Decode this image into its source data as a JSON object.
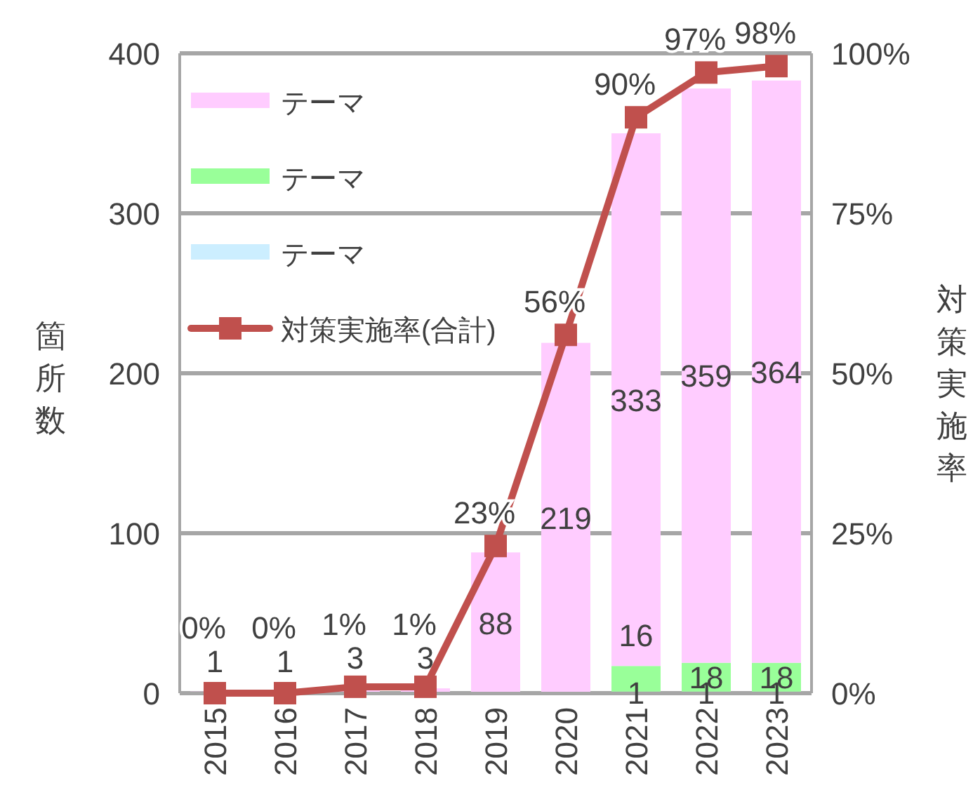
{
  "chart_data": {
    "type": "bar",
    "stacked": true,
    "ylabel": "箇所数",
    "y2label": "対策実施率",
    "categories": [
      "2015",
      "2016",
      "2017",
      "2018",
      "2019",
      "2020",
      "2021",
      "2022",
      "2023"
    ],
    "ylim": [
      0,
      400
    ],
    "yticks": [
      0,
      100,
      200,
      300,
      400
    ],
    "y2lim": [
      0,
      100
    ],
    "y2ticks": [
      {
        "value": 0,
        "label": "0%"
      },
      {
        "value": 25,
        "label": "25%"
      },
      {
        "value": 50,
        "label": "50%"
      },
      {
        "value": 75,
        "label": "75%"
      },
      {
        "value": 100,
        "label": "100%"
      }
    ],
    "grid": "y",
    "legend": "top left",
    "data_labels": true,
    "series": [
      {
        "name": "テーマ",
        "color": "#cceeff",
        "values": [
          null,
          null,
          null,
          null,
          null,
          null,
          1,
          1,
          1
        ]
      },
      {
        "name": "テーマ",
        "color": "#99ff99",
        "values": [
          null,
          null,
          null,
          null,
          null,
          null,
          16,
          18,
          18
        ]
      },
      {
        "name": "テーマ",
        "color": "#ffccff",
        "values": [
          1,
          1,
          3,
          3,
          88,
          219,
          333,
          359,
          364
        ]
      },
      {
        "name": "対策実施率(合計)",
        "type": "line",
        "axis": "y2",
        "color": "#c0504d",
        "marker": "square",
        "values": [
          0,
          0,
          1,
          1,
          23,
          56,
          90,
          97,
          98
        ],
        "value_labels": [
          "0%",
          "0%",
          "1%",
          "1%",
          "23%",
          "56%",
          "90%",
          "97%",
          "98%"
        ]
      }
    ]
  }
}
